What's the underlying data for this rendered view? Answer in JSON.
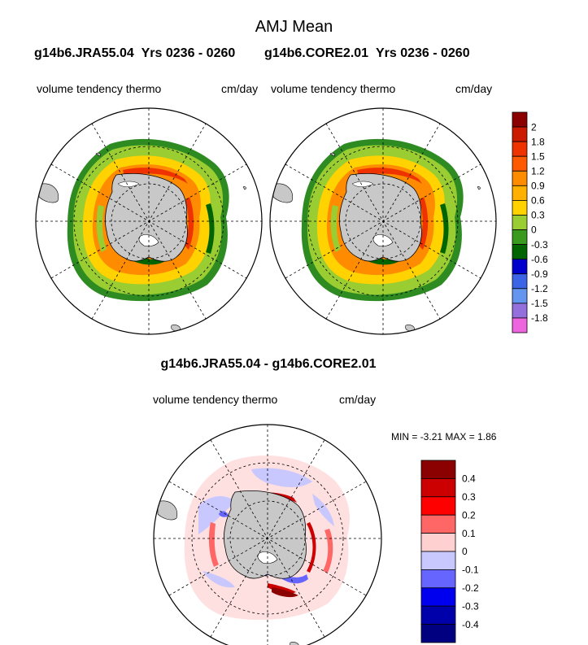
{
  "title": "AMJ Mean",
  "panels": [
    {
      "case": "g14b6.JRA55.04",
      "years": "Yrs 0236 - 0260",
      "variable": "volume tendency thermo",
      "units": "cm/day"
    },
    {
      "case": "g14b6.CORE2.01",
      "years": "Yrs 0236 - 0260",
      "variable": "volume tendency thermo",
      "units": "cm/day"
    }
  ],
  "difference": {
    "title": "g14b6.JRA55.04 - g14b6.CORE2.01",
    "variable": "volume tendency thermo",
    "units": "cm/day",
    "min_label": "MIN =",
    "min_value": "-3.21",
    "max_label": "MAX =",
    "max_value": "1.86"
  },
  "colorbar_main": {
    "labels": [
      "2",
      "1.8",
      "1.5",
      "1.2",
      "0.9",
      "0.6",
      "0.3",
      "0",
      "-0.3",
      "-0.6",
      "-0.9",
      "-1.2",
      "-1.5",
      "-1.8"
    ],
    "colors": [
      "#8b0000",
      "#cc1a00",
      "#ee3300",
      "#ff5a00",
      "#ff8c00",
      "#ffb000",
      "#ffd200",
      "#9acd32",
      "#3a9a1e",
      "#006400",
      "#0000cd",
      "#3c64e6",
      "#6496f0",
      "#9370db",
      "#ee66dd"
    ]
  },
  "colorbar_diff": {
    "labels": [
      "0.4",
      "0.3",
      "0.2",
      "0.1",
      "0",
      "-0.1",
      "-0.2",
      "-0.3",
      "-0.4"
    ],
    "colors": [
      "#8b0000",
      "#cc0000",
      "#ff0000",
      "#ff6666",
      "#ffd0d0",
      "#c8c8ff",
      "#6666ff",
      "#0000ee",
      "#0000aa",
      "#000080"
    ]
  }
}
